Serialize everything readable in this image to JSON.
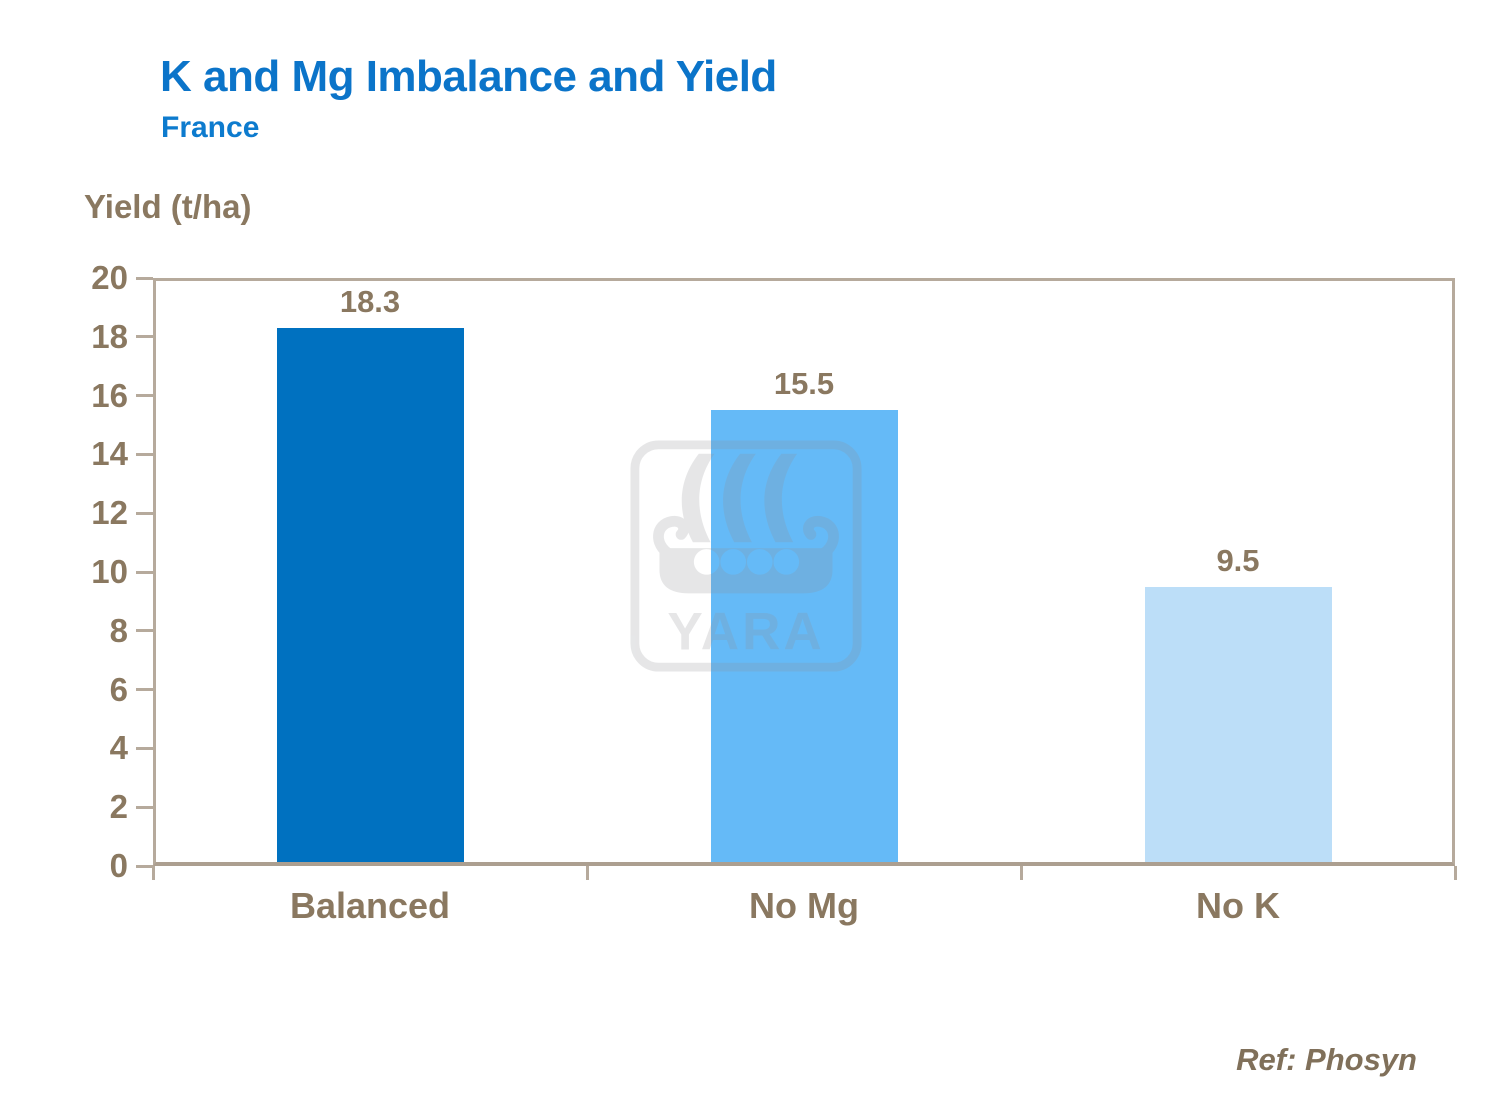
{
  "header": {
    "title": "K and Mg Imbalance and Yield",
    "subtitle": "France"
  },
  "chart_data": {
    "type": "bar",
    "title": "K and Mg Imbalance and Yield",
    "subtitle": "France",
    "ylabel": "Yield (t/ha)",
    "xlabel": "",
    "categories": [
      "Balanced",
      "No Mg",
      "No K"
    ],
    "values": [
      18.3,
      15.5,
      9.5
    ],
    "value_labels": [
      "18.3",
      "15.5",
      "9.5"
    ],
    "ylim": [
      0,
      20
    ],
    "ytick_step": 2,
    "grid": false,
    "legend_position": "none",
    "bar_colors": [
      "#0071c0",
      "#65baf7",
      "#bcdef8"
    ],
    "axis_color": "#b6aa9c",
    "label_color": "#8a7860"
  },
  "footer": {
    "ref_label": "Ref: Phosyn"
  },
  "watermark": {
    "name": "yara-logo",
    "text": "YARA"
  }
}
